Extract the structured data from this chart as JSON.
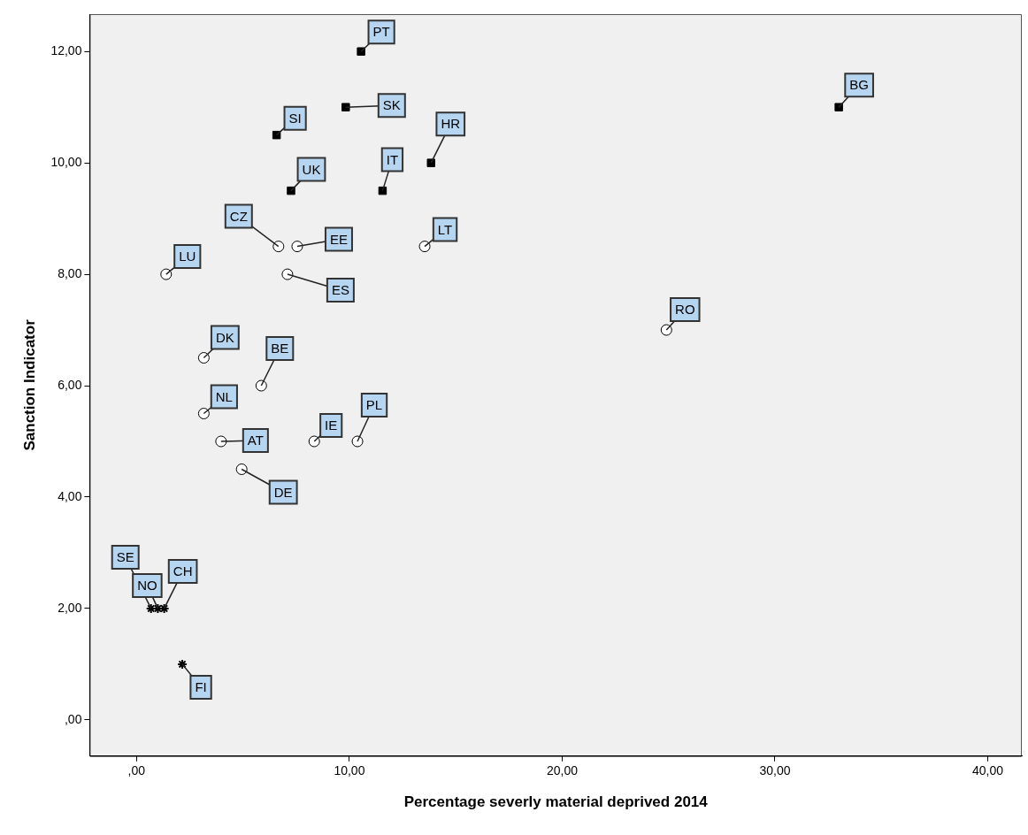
{
  "chart_data": {
    "type": "scatter",
    "xlabel": "Percentage severly material deprived 2014",
    "ylabel": "Sanction Indicator",
    "xlim": [
      -2.2,
      41.6
    ],
    "ylim": [
      -0.65,
      12.67
    ],
    "xticks": [
      {
        "value": 0,
        "label": ",00"
      },
      {
        "value": 10,
        "label": "10,00"
      },
      {
        "value": 20,
        "label": "20,00"
      },
      {
        "value": 30,
        "label": "30,00"
      },
      {
        "value": 40,
        "label": "40,00"
      }
    ],
    "yticks": [
      {
        "value": 0,
        "label": ",00"
      },
      {
        "value": 2,
        "label": "2,00"
      },
      {
        "value": 4,
        "label": "4,00"
      },
      {
        "value": 6,
        "label": "6,00"
      },
      {
        "value": 8,
        "label": "8,00"
      },
      {
        "value": 10,
        "label": "10,00"
      },
      {
        "value": 12,
        "label": "12,00"
      }
    ],
    "legend": false,
    "series": [
      {
        "color": "#000000",
        "marker": "square",
        "x": [
          10.55,
          9.83,
          6.58,
          7.26,
          11.56,
          13.84,
          33.0
        ],
        "values": [
          12,
          11,
          10.5,
          9.5,
          9.5,
          10,
          11
        ]
      },
      {
        "color": "#ffffff",
        "marker": "circle",
        "x": [
          6.67,
          7.55,
          13.54,
          1.39,
          7.09,
          24.9,
          3.16,
          5.86,
          3.16,
          3.97,
          8.35,
          10.38,
          4.94
        ],
        "values": [
          8.5,
          8.5,
          8.5,
          8,
          8,
          7,
          6.5,
          6,
          5.5,
          5,
          5,
          5,
          4.5
        ]
      },
      {
        "color": "#000000",
        "marker": "cross",
        "x": [
          0.68,
          1.0,
          1.3,
          2.15
        ],
        "values": [
          2,
          2,
          2,
          1
        ]
      }
    ],
    "annotations": [
      {
        "text": "PT",
        "x": 10.55,
        "y": 12
      },
      {
        "text": "SK",
        "x": 9.83,
        "y": 11
      },
      {
        "text": "SI",
        "x": 6.58,
        "y": 10.5
      },
      {
        "text": "UK",
        "x": 7.26,
        "y": 9.5
      },
      {
        "text": "IT",
        "x": 11.56,
        "y": 9.5
      },
      {
        "text": "HR",
        "x": 13.84,
        "y": 10
      },
      {
        "text": "BG",
        "x": 33.0,
        "y": 11
      },
      {
        "text": "CZ",
        "x": 6.67,
        "y": 8.5
      },
      {
        "text": "EE",
        "x": 7.55,
        "y": 8.5
      },
      {
        "text": "LT",
        "x": 13.54,
        "y": 8.5
      },
      {
        "text": "LU",
        "x": 1.39,
        "y": 8
      },
      {
        "text": "ES",
        "x": 7.09,
        "y": 8
      },
      {
        "text": "RO",
        "x": 24.9,
        "y": 7
      },
      {
        "text": "DK",
        "x": 3.16,
        "y": 6.5
      },
      {
        "text": "BE",
        "x": 5.86,
        "y": 6
      },
      {
        "text": "NL",
        "x": 3.16,
        "y": 5.5
      },
      {
        "text": "AT",
        "x": 3.97,
        "y": 5
      },
      {
        "text": "IE",
        "x": 8.35,
        "y": 5
      },
      {
        "text": "PL",
        "x": 10.38,
        "y": 5
      },
      {
        "text": "DE",
        "x": 4.94,
        "y": 4.5
      },
      {
        "text": "SE",
        "x": 0.68,
        "y": 2
      },
      {
        "text": "NO",
        "x": 1.0,
        "y": 2
      },
      {
        "text": "CH",
        "x": 1.3,
        "y": 2
      },
      {
        "text": "FI",
        "x": 2.15,
        "y": 1
      }
    ]
  }
}
